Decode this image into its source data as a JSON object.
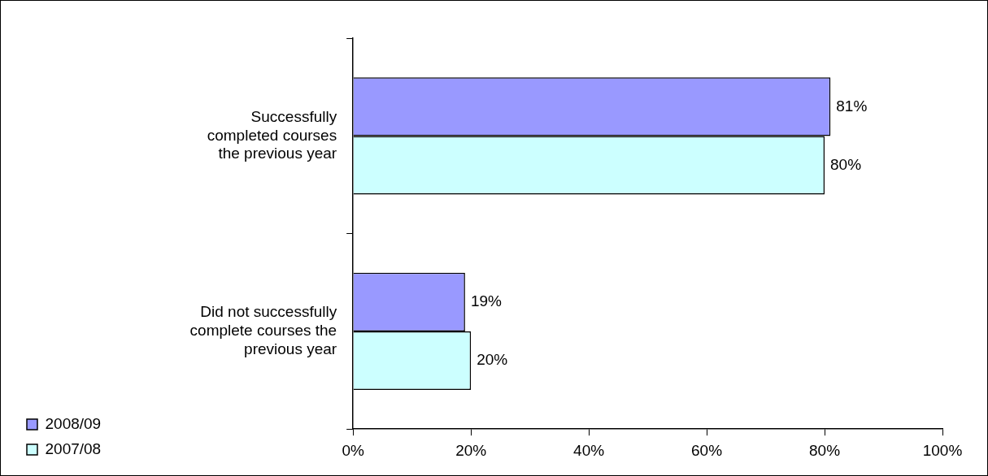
{
  "chart_data": {
    "type": "bar",
    "orientation": "horizontal",
    "categories": [
      "Successfully completed courses the previous year",
      "Did not successfully complete courses the previous year"
    ],
    "series": [
      {
        "name": "2008/09",
        "color": "#9999ff",
        "values": [
          81,
          19
        ],
        "value_labels": [
          "81%",
          "19%"
        ]
      },
      {
        "name": "2007/08",
        "color": "#ccffff",
        "values": [
          80,
          20
        ],
        "value_labels": [
          "80%",
          "20%"
        ]
      }
    ],
    "xlim": [
      0,
      100
    ],
    "xticks": [
      {
        "value": 0,
        "label": "0%"
      },
      {
        "value": 20,
        "label": "20%"
      },
      {
        "value": 40,
        "label": "40%"
      },
      {
        "value": 60,
        "label": "60%"
      },
      {
        "value": 80,
        "label": "80%"
      },
      {
        "value": 100,
        "label": "100%"
      }
    ],
    "grid": false,
    "legend": "bottom left"
  }
}
